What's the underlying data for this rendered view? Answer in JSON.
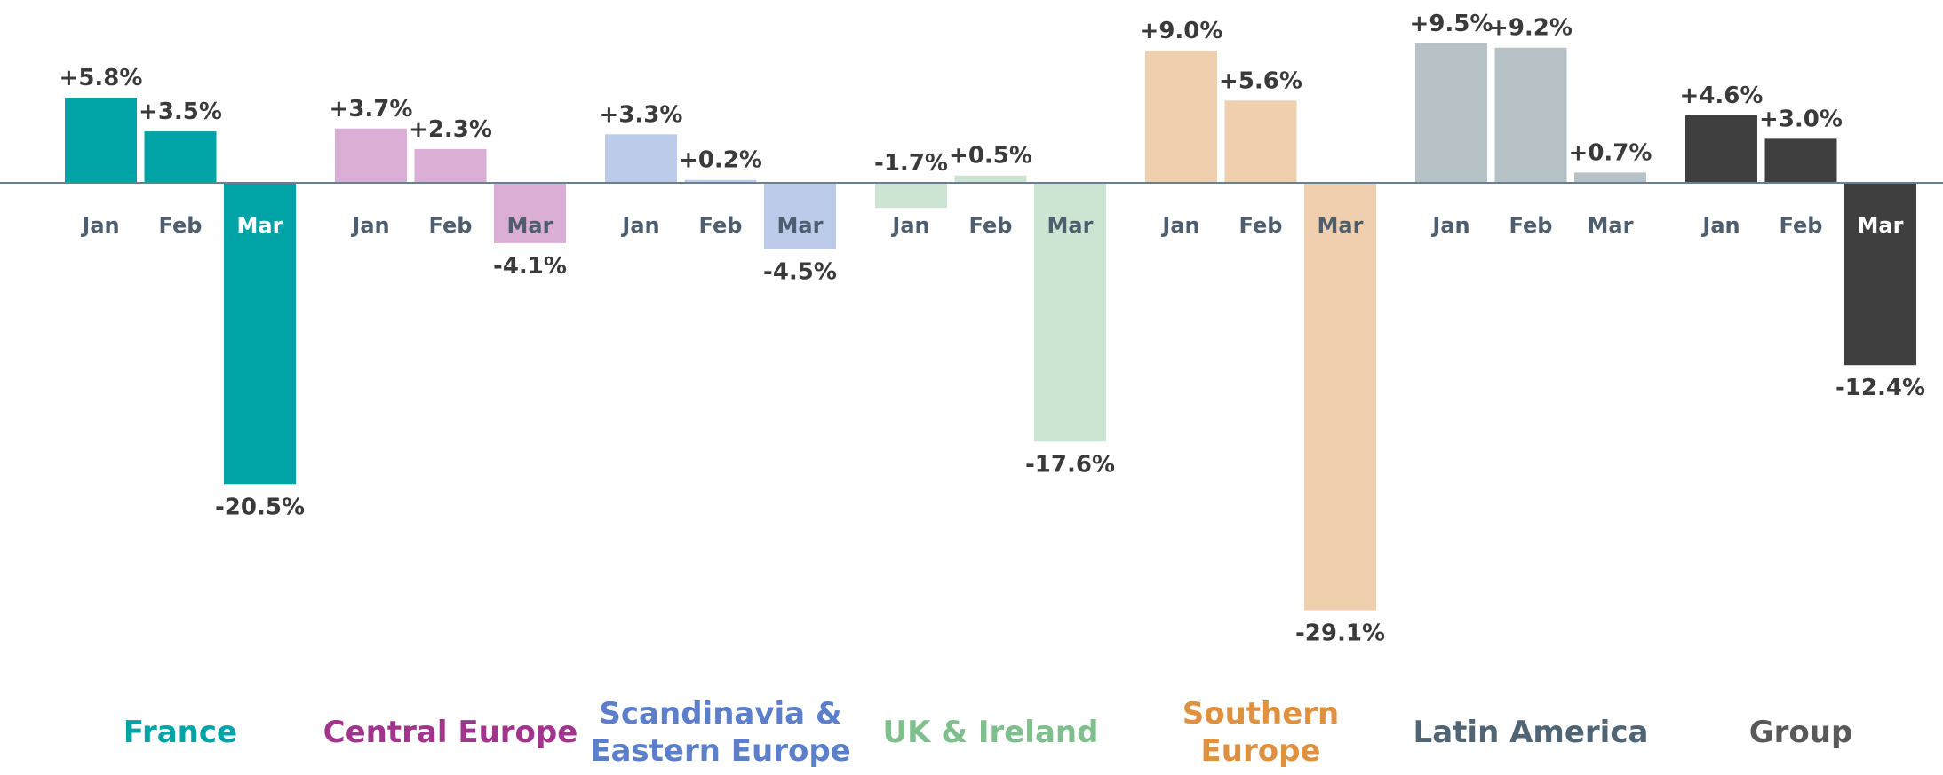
{
  "chart_data": {
    "type": "bar",
    "categories": [
      "Jan",
      "Feb",
      "Mar"
    ],
    "series": [
      {
        "name": "France",
        "color": "#00a3a6",
        "label_color": "#00a3a6",
        "values": [
          5.8,
          3.5,
          -20.5
        ],
        "value_labels": [
          "+5.8%",
          "+3.5%",
          "-20.5%"
        ]
      },
      {
        "name": "Central Europe",
        "color": "#dbaed5",
        "label_color": "#a2348e",
        "values": [
          3.7,
          2.3,
          -4.1
        ],
        "value_labels": [
          "+3.7%",
          "+2.3%",
          "-4.1%"
        ]
      },
      {
        "name": "Scandinavia & Eastern Europe",
        "color": "#bccbea",
        "label_color": "#5b7fca",
        "values": [
          3.3,
          0.2,
          -4.5
        ],
        "value_labels": [
          "+3.3%",
          "+0.2%",
          "-4.5%"
        ]
      },
      {
        "name": "UK & Ireland",
        "color": "#cce5d3",
        "label_color": "#7fbf8e",
        "values": [
          -1.7,
          0.5,
          -17.6
        ],
        "value_labels": [
          "-1.7%",
          "+0.5%",
          "-17.6%"
        ]
      },
      {
        "name": "Southern Europe",
        "color": "#f0cfae",
        "label_color": "#e0913f",
        "values": [
          9.0,
          5.6,
          -29.1
        ],
        "value_labels": [
          "+9.0%",
          "+5.6%",
          "-29.1%"
        ]
      },
      {
        "name": "Latin America",
        "color": "#b7c2c6",
        "label_color": "#4f6474",
        "values": [
          9.5,
          9.2,
          0.7
        ],
        "value_labels": [
          "+9.5%",
          "+9.2%",
          "+0.7%"
        ]
      },
      {
        "name": "Group",
        "color": "#3f3f3f",
        "label_color": "#595959",
        "values": [
          4.6,
          3.0,
          -12.4
        ],
        "value_labels": [
          "+4.6%",
          "+3.0%",
          "-12.4%"
        ]
      }
    ]
  }
}
